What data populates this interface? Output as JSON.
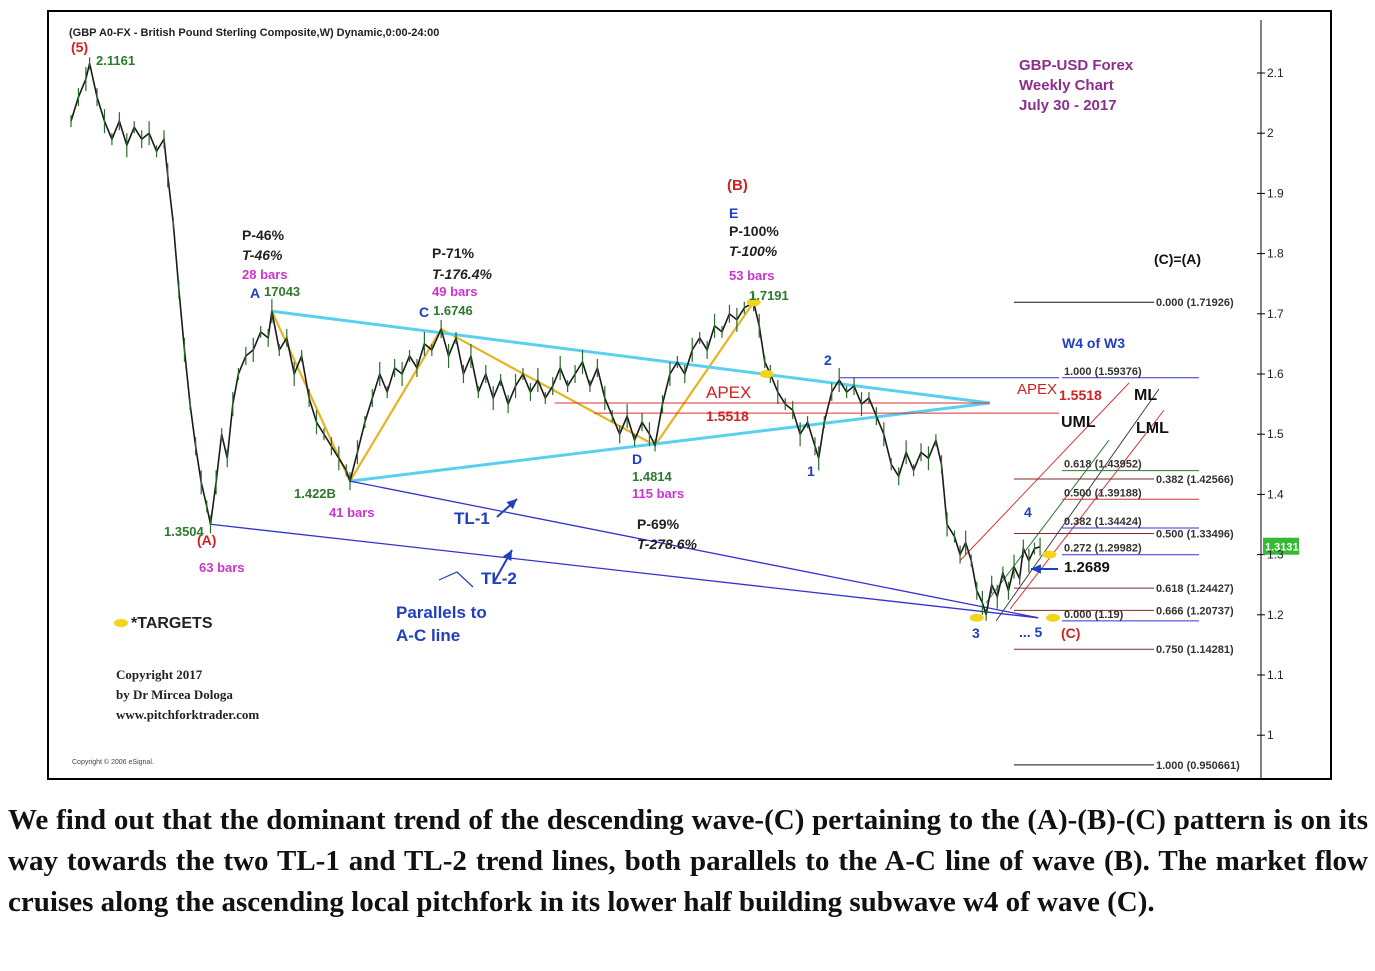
{
  "header": "(GBP A0-FX - British Pound Sterling Composite,W) Dynamic,0:00-24:00",
  "title_block": [
    "GBP-USD Forex",
    "Weekly Chart",
    "July 30 - 2017"
  ],
  "copyright": [
    "Copyright 2017",
    "by Dr Mircea Dologa",
    "www.pitchforktrader.com"
  ],
  "esignal": "Copyright © 2006 eSignal.",
  "legend_targets": "*TARGETS",
  "current_price": "1.3131",
  "caption": "We find out that the dominant trend of the descending wave-(C) pertaining to the (A)-(B)-(C) pattern is on its way towards the two TL-1 and TL-2 trend lines, both parallels to the A-C line of wave (B). The market flow cruises along the ascending local pitchfork in its lower half building subwave w4 of wave (C).",
  "colors": {
    "price": "#1a1a1a",
    "triangle": "#5ad0ee",
    "zigzag": "#e6b422",
    "trendline": "#3333cc",
    "pitchfork": "#d33",
    "wave_label": "#cc2222",
    "blue_label": "#1f3fbf",
    "green_label": "#2d7a2d",
    "magenta_label": "#cc33cc",
    "purple_title": "#8b2f8b",
    "target": "#f2d41c"
  },
  "annotations": {
    "w5": "(5)",
    "w5_price": "2.1161",
    "wA_price": "1.3504",
    "wA": "(A)",
    "wA_bars": "63 bars",
    "A_stats": [
      "P-46%",
      "T-46%",
      "28 bars"
    ],
    "A": "A",
    "A_price": "17043",
    "B": "1.422B",
    "B_bars": "41 bars",
    "C_stats": [
      "P-71%",
      "T-176.4%",
      "49 bars"
    ],
    "C": "C",
    "C_price": "1.6746",
    "D": "D",
    "D_price": "1.4814",
    "D_bars": "115 bars",
    "E_head": "(B)",
    "E": "E",
    "E_stats": [
      "P-100%",
      "T-100%",
      "53 bars"
    ],
    "E_price": "1.7191",
    "apex": "APEX",
    "apex_price": "1.5518",
    "apex_right": "APEX",
    "apex_right_price": "1.5518",
    "P69": [
      "P-69%",
      "T-278.6%"
    ],
    "TL1": "TL-1",
    "TL2": "TL-2",
    "parallels": [
      "Parallels to",
      "A-C line"
    ],
    "n1": "1",
    "n2": "2",
    "n3": "3",
    "n4": "4",
    "n5": "... 5",
    "nC": "(C)",
    "arrow_price": "1.2689",
    "ML": "ML",
    "UML": "UML",
    "LML": "LML",
    "w4w3": "W4 of W3",
    "CeqA": "(C)=(A)"
  },
  "chart_data": {
    "type": "line",
    "title": "GBP-USD Forex Weekly Chart",
    "ylim": [
      0.93,
      2.16
    ],
    "y_ticks": [
      "2.1",
      "2",
      "1.9",
      "1.8",
      "1.7",
      "1.6",
      "1.5",
      "1.4",
      "1.3",
      "1.2",
      "1.1",
      "1"
    ],
    "y_tick_values": [
      2.1,
      2.0,
      1.9,
      1.8,
      1.7,
      1.6,
      1.5,
      1.4,
      1.3,
      1.2,
      1.1,
      1.0
    ],
    "x_range": [
      0,
      600
    ],
    "grid": false,
    "swing_points": [
      {
        "label": "(5)",
        "x": 10,
        "y": 2.1161
      },
      {
        "label": "(A)",
        "x": 75,
        "y": 1.3504
      },
      {
        "label": "A",
        "x": 108,
        "y": 1.7043
      },
      {
        "label": "B",
        "x": 150,
        "y": 1.422
      },
      {
        "label": "C",
        "x": 199,
        "y": 1.6746
      },
      {
        "label": "D",
        "x": 314,
        "y": 1.4814
      },
      {
        "label": "E / (B)",
        "x": 367,
        "y": 1.7191
      },
      {
        "label": "1",
        "x": 402,
        "y": 1.46
      },
      {
        "label": "2",
        "x": 413,
        "y": 1.59
      },
      {
        "label": "3",
        "x": 492,
        "y": 1.2
      },
      {
        "label": "4",
        "x": 512,
        "y": 1.31
      }
    ],
    "price_path": [
      [
        0,
        2.02
      ],
      [
        4,
        2.06
      ],
      [
        8,
        2.09
      ],
      [
        10,
        2.1161
      ],
      [
        14,
        2.06
      ],
      [
        18,
        2.02
      ],
      [
        22,
        1.99
      ],
      [
        26,
        2.02
      ],
      [
        30,
        1.98
      ],
      [
        34,
        2.01
      ],
      [
        38,
        1.99
      ],
      [
        42,
        2.0
      ],
      [
        46,
        1.97
      ],
      [
        50,
        1.99
      ],
      [
        52,
        1.93
      ],
      [
        55,
        1.85
      ],
      [
        58,
        1.74
      ],
      [
        61,
        1.64
      ],
      [
        64,
        1.55
      ],
      [
        67,
        1.48
      ],
      [
        70,
        1.42
      ],
      [
        73,
        1.38
      ],
      [
        75,
        1.3504
      ],
      [
        78,
        1.42
      ],
      [
        81,
        1.5
      ],
      [
        84,
        1.46
      ],
      [
        87,
        1.55
      ],
      [
        90,
        1.6
      ],
      [
        94,
        1.63
      ],
      [
        98,
        1.64
      ],
      [
        102,
        1.67
      ],
      [
        106,
        1.66
      ],
      [
        108,
        1.7043
      ],
      [
        112,
        1.64
      ],
      [
        116,
        1.66
      ],
      [
        120,
        1.6
      ],
      [
        124,
        1.63
      ],
      [
        128,
        1.56
      ],
      [
        132,
        1.52
      ],
      [
        136,
        1.5
      ],
      [
        140,
        1.48
      ],
      [
        144,
        1.46
      ],
      [
        148,
        1.44
      ],
      [
        150,
        1.422
      ],
      [
        154,
        1.47
      ],
      [
        158,
        1.52
      ],
      [
        162,
        1.56
      ],
      [
        166,
        1.6
      ],
      [
        170,
        1.57
      ],
      [
        174,
        1.61
      ],
      [
        178,
        1.6
      ],
      [
        182,
        1.63
      ],
      [
        186,
        1.61
      ],
      [
        190,
        1.65
      ],
      [
        194,
        1.64
      ],
      [
        199,
        1.6746
      ],
      [
        203,
        1.63
      ],
      [
        207,
        1.66
      ],
      [
        211,
        1.6
      ],
      [
        215,
        1.63
      ],
      [
        219,
        1.57
      ],
      [
        223,
        1.6
      ],
      [
        227,
        1.56
      ],
      [
        231,
        1.59
      ],
      [
        235,
        1.55
      ],
      [
        239,
        1.58
      ],
      [
        243,
        1.6
      ],
      [
        247,
        1.57
      ],
      [
        251,
        1.59
      ],
      [
        255,
        1.56
      ],
      [
        259,
        1.58
      ],
      [
        263,
        1.61
      ],
      [
        267,
        1.58
      ],
      [
        271,
        1.6
      ],
      [
        275,
        1.62
      ],
      [
        279,
        1.58
      ],
      [
        283,
        1.61
      ],
      [
        287,
        1.56
      ],
      [
        291,
        1.53
      ],
      [
        295,
        1.5
      ],
      [
        299,
        1.53
      ],
      [
        303,
        1.49
      ],
      [
        307,
        1.52
      ],
      [
        311,
        1.5
      ],
      [
        314,
        1.4814
      ],
      [
        318,
        1.55
      ],
      [
        322,
        1.6
      ],
      [
        326,
        1.62
      ],
      [
        330,
        1.6
      ],
      [
        334,
        1.64
      ],
      [
        338,
        1.66
      ],
      [
        342,
        1.64
      ],
      [
        346,
        1.68
      ],
      [
        350,
        1.67
      ],
      [
        354,
        1.7
      ],
      [
        358,
        1.69
      ],
      [
        362,
        1.71
      ],
      [
        367,
        1.7191
      ],
      [
        370,
        1.68
      ],
      [
        373,
        1.62
      ],
      [
        376,
        1.6
      ],
      [
        380,
        1.57
      ],
      [
        384,
        1.55
      ],
      [
        388,
        1.54
      ],
      [
        392,
        1.5
      ],
      [
        396,
        1.52
      ],
      [
        400,
        1.48
      ],
      [
        402,
        1.46
      ],
      [
        405,
        1.52
      ],
      [
        409,
        1.57
      ],
      [
        413,
        1.59
      ],
      [
        417,
        1.57
      ],
      [
        421,
        1.58
      ],
      [
        425,
        1.55
      ],
      [
        429,
        1.56
      ],
      [
        433,
        1.53
      ],
      [
        437,
        1.5
      ],
      [
        441,
        1.45
      ],
      [
        445,
        1.43
      ],
      [
        449,
        1.47
      ],
      [
        453,
        1.44
      ],
      [
        457,
        1.47
      ],
      [
        461,
        1.46
      ],
      [
        465,
        1.49
      ],
      [
        468,
        1.45
      ],
      [
        471,
        1.35
      ],
      [
        475,
        1.33
      ],
      [
        478,
        1.3
      ],
      [
        481,
        1.32
      ],
      [
        484,
        1.29
      ],
      [
        487,
        1.24
      ],
      [
        490,
        1.22
      ],
      [
        492,
        1.2
      ],
      [
        495,
        1.25
      ],
      [
        498,
        1.23
      ],
      [
        501,
        1.27
      ],
      [
        504,
        1.24
      ],
      [
        507,
        1.28
      ],
      [
        510,
        1.26
      ],
      [
        512,
        1.31
      ],
      [
        515,
        1.29
      ],
      [
        518,
        1.31
      ],
      [
        521,
        1.3131
      ]
    ],
    "lines": [
      {
        "name": "zigzag A-B-C-D-E",
        "points": [
          [
            108,
            1.7043
          ],
          [
            150,
            1.422
          ],
          [
            199,
            1.6746
          ],
          [
            314,
            1.4814
          ],
          [
            367,
            1.7191
          ]
        ]
      },
      {
        "name": "triangle upper",
        "points": [
          [
            108,
            1.7043
          ],
          [
            494,
            1.5518
          ]
        ]
      },
      {
        "name": "triangle lower",
        "points": [
          [
            150,
            1.422
          ],
          [
            494,
            1.5518
          ]
        ]
      },
      {
        "name": "TL-1",
        "points": [
          [
            150,
            1.422
          ],
          [
            520,
            1.195
          ]
        ]
      },
      {
        "name": "TL-2",
        "points": [
          [
            75,
            1.3504
          ],
          [
            520,
            1.195
          ]
        ]
      },
      {
        "name": "APEX",
        "points": [
          [
            260,
            1.5518
          ],
          [
            494,
            1.5518
          ]
        ]
      }
    ],
    "fib_levels_left": [
      {
        "label": "1.000 (1.59376)",
        "value": 1.59376
      },
      {
        "label": "0.618 (1.43952)",
        "value": 1.43952
      },
      {
        "label": "0.500 (1.39188)",
        "value": 1.39188
      },
      {
        "label": "0.382 (1.34424)",
        "value": 1.34424
      },
      {
        "label": "0.272 (1.29982)",
        "value": 1.29982
      },
      {
        "label": "0.000 (1.19)",
        "value": 1.19
      }
    ],
    "fib_levels_right": [
      {
        "label": "0.000 (1.71926)",
        "value": 1.71926
      },
      {
        "label": "0.382 (1.42566)",
        "value": 1.42566
      },
      {
        "label": "0.500 (1.33496)",
        "value": 1.33496
      },
      {
        "label": "0.618 (1.24427)",
        "value": 1.24427
      },
      {
        "label": "0.666 (1.20737)",
        "value": 1.20737
      },
      {
        "label": "0.750 (1.14281)",
        "value": 1.14281
      },
      {
        "label": "1.000 (0.950661)",
        "value": 0.950661
      }
    ],
    "targets": [
      1.7191,
      1.6,
      1.3,
      1.195
    ]
  }
}
